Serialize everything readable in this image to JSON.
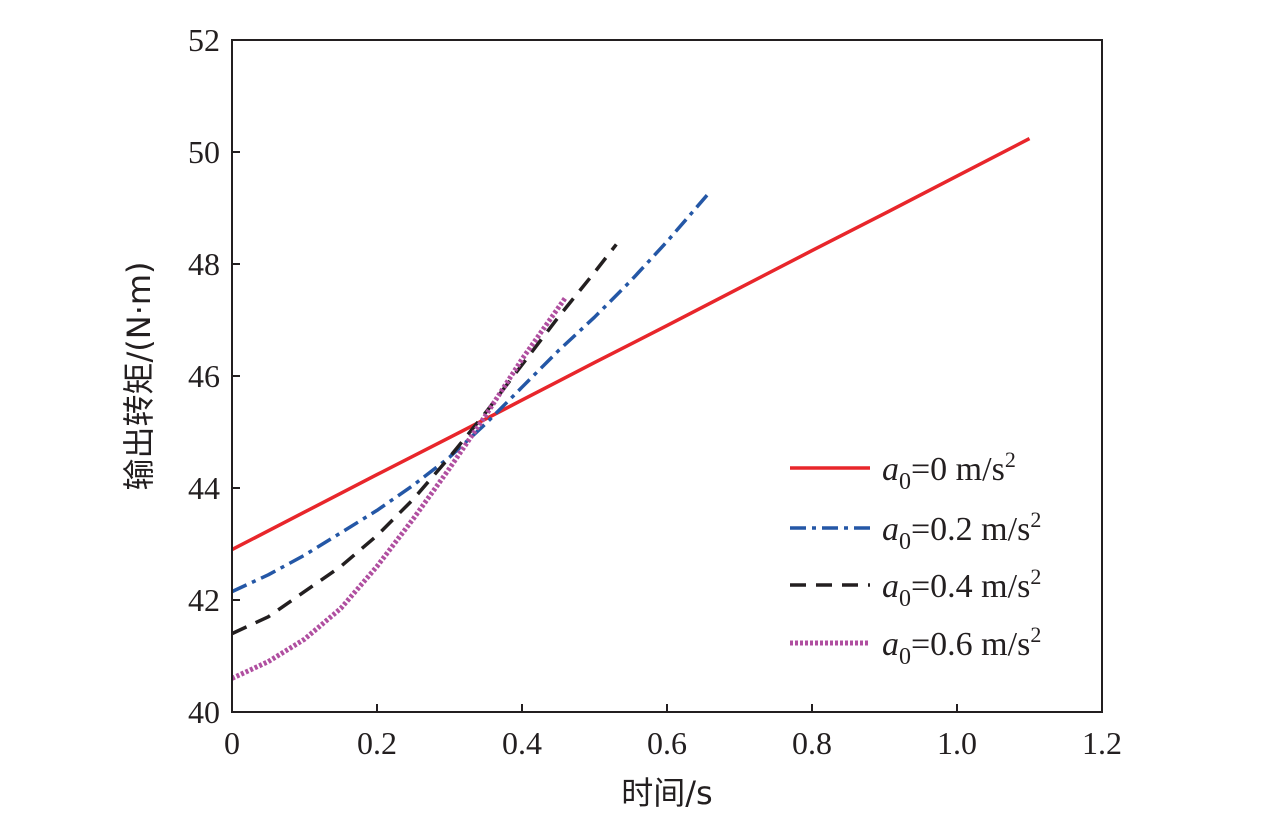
{
  "chart_data": {
    "type": "line",
    "xlabel": "时间/s",
    "ylabel": "输出转矩/(N·m)",
    "xlim": [
      0,
      1.2
    ],
    "ylim": [
      40,
      52
    ],
    "xticks": [
      0,
      0.2,
      0.4,
      0.6,
      0.8,
      1.0,
      1.2
    ],
    "xtick_labels": [
      "0",
      "0.2",
      "0.4",
      "0.6",
      "0.8",
      "1.0",
      "1.2"
    ],
    "yticks": [
      40,
      42,
      44,
      46,
      48,
      50,
      52
    ],
    "ytick_labels": [
      "40",
      "42",
      "44",
      "46",
      "48",
      "50",
      "52"
    ],
    "grid": false,
    "legend_position": "bottom-right",
    "series": [
      {
        "name": "a0=0 m/s2",
        "label_var": "a",
        "label_sub": "0",
        "label_eq": "=0 m/s",
        "label_sup": "2",
        "color": "#e8262b",
        "style": "solid",
        "x": [
          0,
          0.1,
          0.2,
          0.3,
          0.36,
          0.4,
          0.5,
          0.6,
          0.7,
          0.8,
          0.9,
          1.0,
          1.1
        ],
        "y": [
          42.9,
          43.57,
          44.24,
          44.9,
          45.3,
          45.57,
          46.24,
          46.9,
          47.57,
          48.24,
          48.9,
          49.57,
          50.24
        ]
      },
      {
        "name": "a0=0.2 m/s2",
        "label_var": "a",
        "label_sub": "0",
        "label_eq": "=0.2 m/s",
        "label_sup": "2",
        "color": "#2457a6",
        "style": "dashdot",
        "x": [
          0,
          0.05,
          0.1,
          0.15,
          0.2,
          0.25,
          0.3,
          0.35,
          0.4,
          0.45,
          0.5,
          0.55,
          0.6,
          0.66
        ],
        "y": [
          42.15,
          42.45,
          42.8,
          43.2,
          43.6,
          44.05,
          44.55,
          45.15,
          45.8,
          46.45,
          47.05,
          47.7,
          48.4,
          49.3
        ]
      },
      {
        "name": "a0=0.4 m/s2",
        "label_var": "a",
        "label_sub": "0",
        "label_eq": "=0.4 m/s",
        "label_sup": "2",
        "color": "#231f20",
        "style": "dashed",
        "x": [
          0,
          0.05,
          0.1,
          0.15,
          0.2,
          0.25,
          0.3,
          0.35,
          0.4,
          0.45,
          0.5,
          0.53
        ],
        "y": [
          41.4,
          41.7,
          42.15,
          42.6,
          43.15,
          43.8,
          44.55,
          45.35,
          46.2,
          47.05,
          47.85,
          48.35
        ]
      },
      {
        "name": "a0=0.6 m/s2",
        "label_var": "a",
        "label_sub": "0",
        "label_eq": "=0.6 m/s",
        "label_sup": "2",
        "color": "#b04fa0",
        "style": "dotted",
        "x": [
          0,
          0.05,
          0.1,
          0.15,
          0.2,
          0.25,
          0.3,
          0.35,
          0.4,
          0.46
        ],
        "y": [
          40.6,
          40.9,
          41.3,
          41.85,
          42.6,
          43.45,
          44.35,
          45.3,
          46.3,
          47.4
        ]
      }
    ]
  }
}
